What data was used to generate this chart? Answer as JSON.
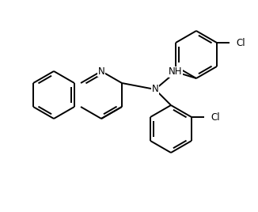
{
  "bg_color": "#ffffff",
  "line_color": "#000000",
  "lw": 1.4,
  "fs": 8.5,
  "figsize": [
    3.26,
    2.68
  ],
  "dpi": 100,
  "xlim": [
    0,
    326
  ],
  "ylim": [
    0,
    268
  ]
}
